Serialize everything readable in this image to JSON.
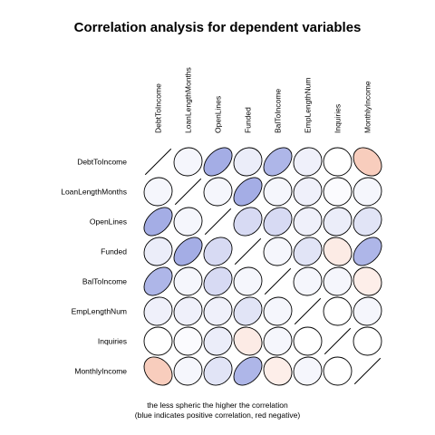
{
  "chart_data": {
    "type": "heatmap",
    "title": "Correlation analysis for dependent variables",
    "variables": [
      "DebtToIncome",
      "LoanLengthMonths",
      "OpenLines",
      "Funded",
      "BalToIncome",
      "EmpLengthNum",
      "Inquiries",
      "MonthlyIncome"
    ],
    "matrix": [
      [
        1.0,
        0.05,
        0.45,
        0.1,
        0.4,
        0.08,
        0.0,
        -0.3
      ],
      [
        0.05,
        1.0,
        0.05,
        0.45,
        0.05,
        0.08,
        0.02,
        0.05
      ],
      [
        0.45,
        0.05,
        1.0,
        0.2,
        0.2,
        0.08,
        0.1,
        0.15
      ],
      [
        0.1,
        0.45,
        0.2,
        1.0,
        0.05,
        0.15,
        -0.12,
        0.4
      ],
      [
        0.4,
        0.05,
        0.2,
        0.05,
        1.0,
        0.05,
        0.05,
        -0.1
      ],
      [
        0.08,
        0.08,
        0.08,
        0.15,
        0.05,
        1.0,
        0.0,
        0.05
      ],
      [
        0.0,
        0.02,
        0.1,
        -0.12,
        0.05,
        0.0,
        1.0,
        0.0
      ],
      [
        -0.3,
        0.05,
        0.15,
        0.4,
        -0.1,
        0.05,
        0.0,
        1.0
      ]
    ],
    "color_positive": "#3f51c8",
    "color_negative": "#e8602f",
    "notes": [
      "the less spheric the higher the correlation",
      "(blue indicates positive correlation, red negative)"
    ]
  }
}
